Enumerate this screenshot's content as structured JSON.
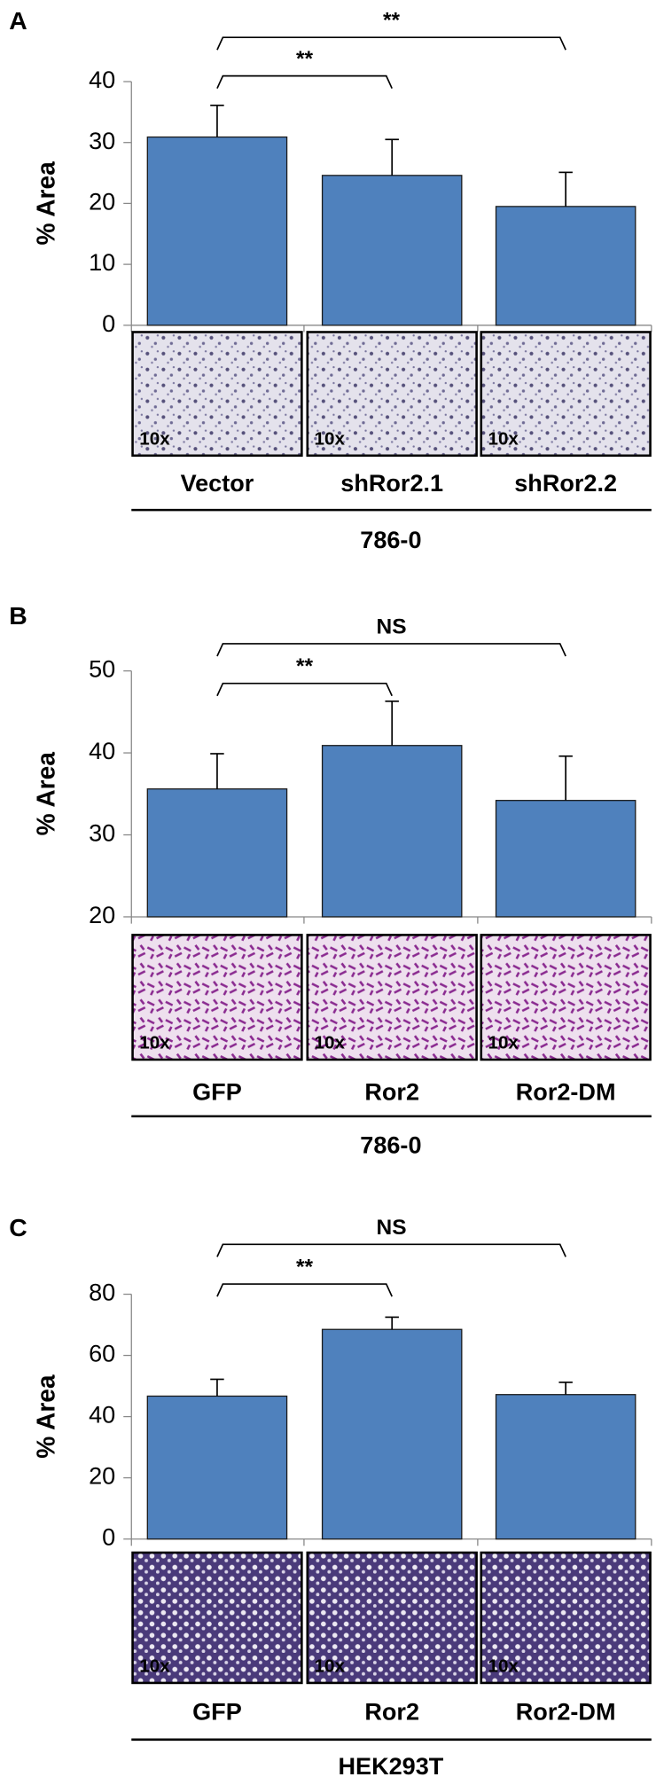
{
  "chart_data": [
    {
      "type": "bar",
      "panel": "A",
      "ylabel": "% Area",
      "categories": [
        "Vector",
        "shRor2.1",
        "shRor2.2"
      ],
      "values": [
        30.9,
        24.6,
        19.5
      ],
      "errors": [
        5.2,
        5.9,
        5.6
      ],
      "color": "#4f81bd",
      "ylim": [
        0,
        40
      ],
      "yticks": [
        0,
        10,
        20,
        30,
        40
      ],
      "brackets": [
        "**",
        "**"
      ],
      "image_labels": [
        "10x",
        "10x",
        "10x"
      ],
      "group": "786-0"
    },
    {
      "type": "bar",
      "panel": "B",
      "ylabel": "% Area",
      "categories": [
        "GFP",
        "Ror2",
        "Ror2-DM"
      ],
      "values": [
        35.6,
        40.9,
        34.2
      ],
      "errors": [
        4.3,
        5.4,
        5.4
      ],
      "color": "#4f81bd",
      "ylim": [
        20,
        50
      ],
      "yticks": [
        20,
        30,
        40,
        50
      ],
      "brackets": [
        "**",
        "NS"
      ],
      "image_labels": [
        "10x",
        "10x",
        "10x"
      ],
      "group": "786-0"
    },
    {
      "type": "bar",
      "panel": "C",
      "ylabel": "% Area",
      "categories": [
        "GFP",
        "Ror2",
        "Ror2-DM"
      ],
      "values": [
        46.7,
        68.5,
        47.2
      ],
      "errors": [
        5.5,
        4.0,
        4.0
      ],
      "color": "#4f81bd",
      "ylim": [
        0,
        80
      ],
      "yticks": [
        0,
        20,
        40,
        60,
        80
      ],
      "brackets": [
        "**",
        "NS"
      ],
      "image_labels": [
        "10x",
        "10x",
        "10x"
      ],
      "group": "HEK293T"
    }
  ]
}
